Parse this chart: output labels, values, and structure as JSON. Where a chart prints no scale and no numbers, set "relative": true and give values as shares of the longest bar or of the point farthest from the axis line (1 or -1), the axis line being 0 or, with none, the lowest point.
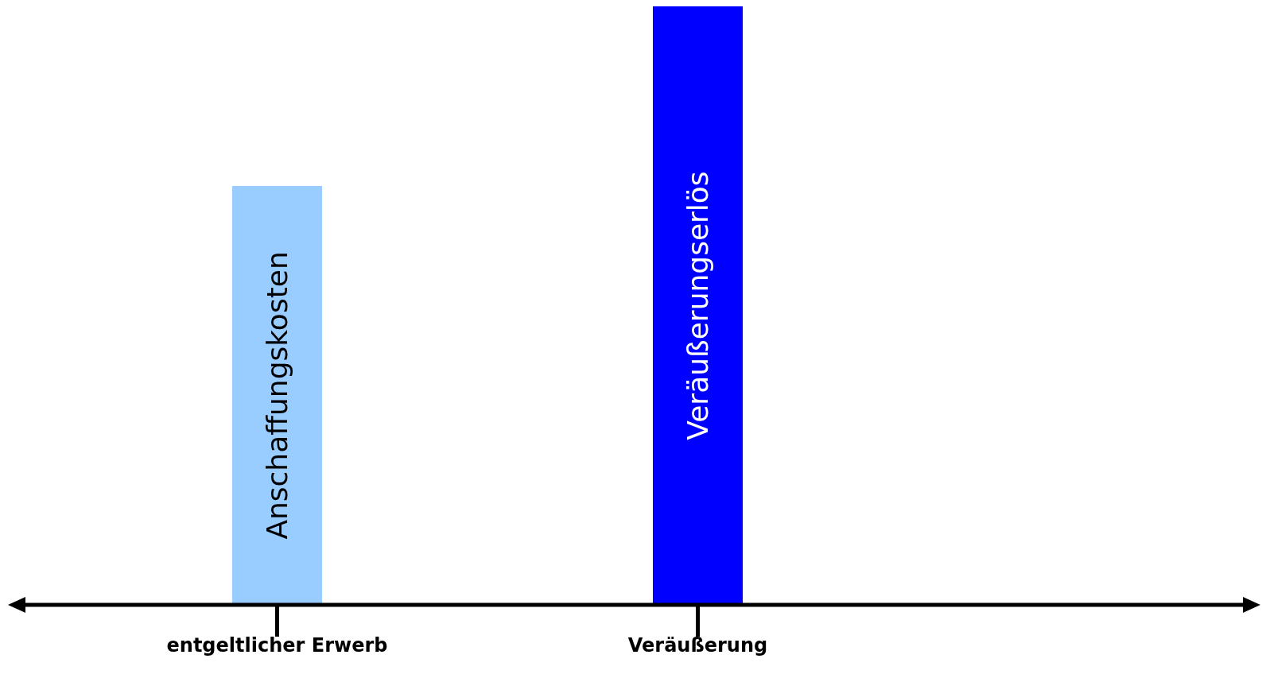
{
  "chart_data": {
    "type": "bar",
    "relative": true,
    "categories": [
      "entgeltlicher Erwerb",
      "Veräußerung"
    ],
    "values": [
      0.7,
      1
    ],
    "colors": [
      "#99ccff",
      "#0000ff"
    ],
    "annotations": [
      "Anschaffungskosten",
      "Veräußerungserlös"
    ]
  }
}
